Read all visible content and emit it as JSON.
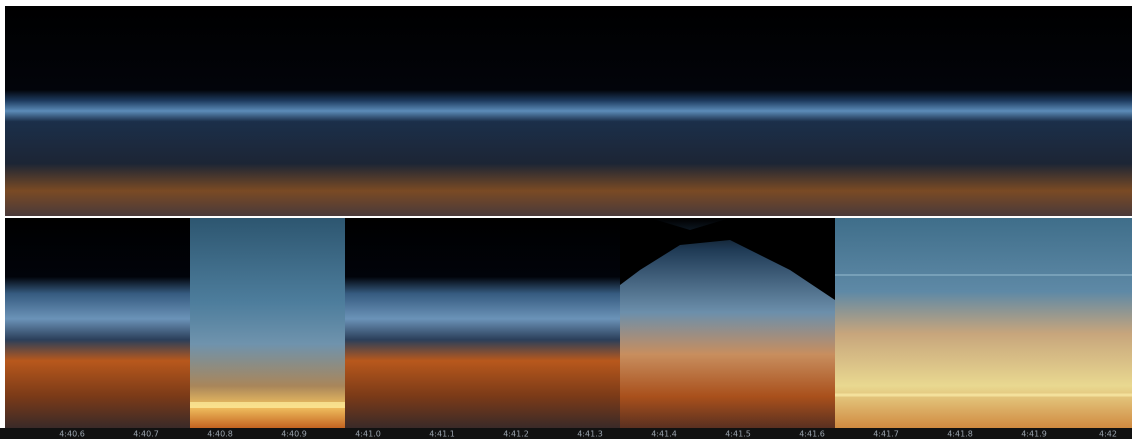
{
  "timeline": {
    "labels": [
      "4:40.6",
      "4:40.7",
      "4:40.8",
      "4:40.9",
      "4:41.0",
      "4:41.1",
      "4:41.2",
      "4:41.3",
      "4:41.4",
      "4:41.5",
      "4:41.6",
      "4:41.7",
      "4:41.8",
      "4:41.9",
      "4:42"
    ]
  }
}
